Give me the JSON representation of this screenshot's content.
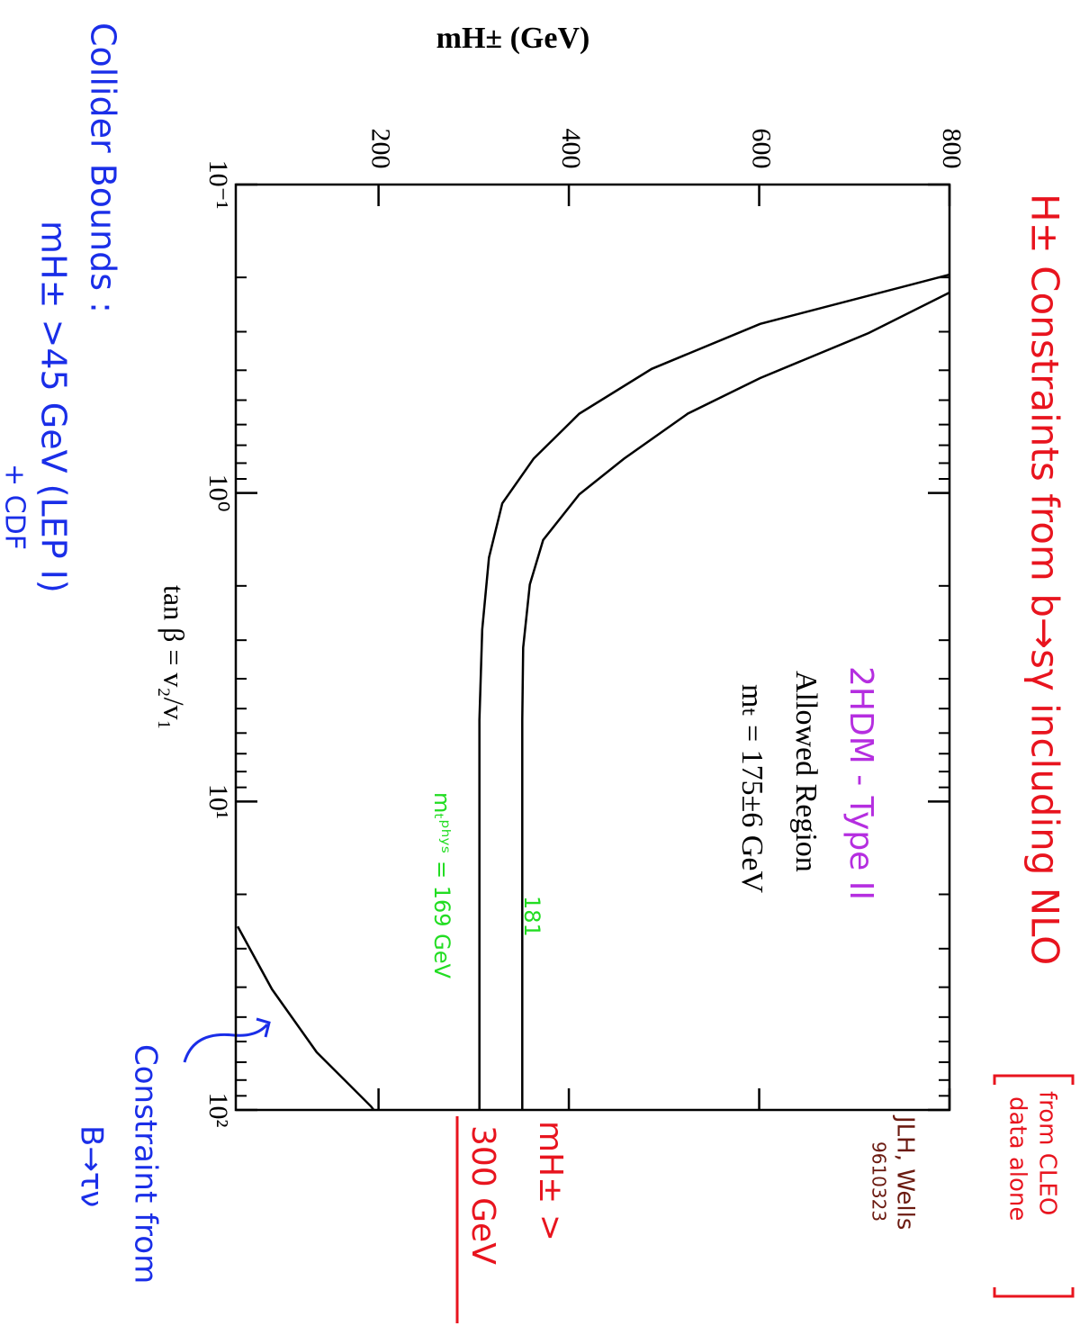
{
  "chart_data": {
    "type": "line",
    "title": "H± Constraints from b→sγ including NLO",
    "title_color": "#e8141e",
    "x_label": "tan β = v₂/v₁",
    "y_label": "mH± (GeV)",
    "xscale": "log",
    "xlim": [
      0.1,
      100
    ],
    "xticks": [
      {
        "value": 0.1,
        "label": "10⁻¹"
      },
      {
        "value": 1,
        "label": "10⁰"
      },
      {
        "value": 10,
        "label": "10¹"
      },
      {
        "value": 100,
        "label": "10²"
      }
    ],
    "xminor_ticks": [
      0.2,
      0.3,
      0.4,
      0.5,
      0.6,
      0.7,
      0.8,
      0.9,
      2,
      3,
      4,
      5,
      6,
      7,
      8,
      9,
      20,
      30,
      40,
      50,
      60,
      70,
      80,
      90
    ],
    "ylim": [
      50,
      800
    ],
    "yticks": [
      200,
      400,
      600,
      800
    ],
    "series": [
      {
        "name": "mₜᵖʰʸˢ = 169 GeV",
        "color": "#000000",
        "label_color": "#22dd22",
        "x": [
          0.196,
          0.283,
          0.396,
          0.553,
          0.774,
          1.08,
          1.62,
          2.77,
          5.43,
          100
        ],
        "values": [
          800,
          601,
          487,
          411,
          363,
          330,
          316,
          309,
          306,
          306
        ]
      },
      {
        "name": "181",
        "color": "#000000",
        "label_color": "#22dd22",
        "x": [
          0.224,
          0.303,
          0.424,
          0.553,
          0.774,
          1.01,
          1.42,
          1.98,
          3.17,
          5.43,
          100
        ],
        "values": [
          800,
          715,
          601,
          525,
          458,
          411,
          373,
          359,
          352,
          351,
          351
        ]
      },
      {
        "color": "#000000",
        "x": [
          25.4,
          40.6,
          65,
          97.3,
          100
        ],
        "values": [
          52,
          88,
          135,
          192,
          195
        ]
      }
    ],
    "annotations": [
      {
        "text": "from CLEO",
        "color": "#e8141e"
      },
      {
        "text": "data alone",
        "color": "#e8141e"
      },
      {
        "text": "JLH, Wells",
        "color": "#6b1a10"
      },
      {
        "text": "9610323",
        "color": "#6b1a10"
      },
      {
        "text": "mH± >",
        "color": "#e8141e"
      },
      {
        "text": "300 GeV",
        "color": "#e8141e"
      },
      {
        "text": "2HDM - Type II",
        "color": "#b52ee0"
      },
      {
        "text": "Allowed Region",
        "color": "#000000"
      },
      {
        "text": "mₜ = 175±6 GeV",
        "color": "#000000"
      },
      {
        "text": "Collider Bounds :",
        "color": "#1a2ee8"
      },
      {
        "text": "mH± >45 GeV (LEP I)",
        "color": "#1a2ee8"
      },
      {
        "text": "+ CDF",
        "color": "#1a2ee8"
      },
      {
        "text": "Constraint from",
        "color": "#1a2ee8"
      },
      {
        "text": "B→τν",
        "color": "#1a2ee8"
      }
    ]
  }
}
